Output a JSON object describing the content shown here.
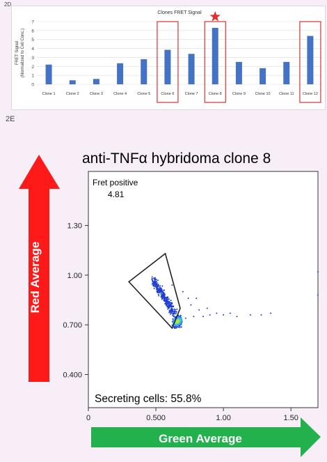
{
  "panels": {
    "top_label": "2D",
    "bottom_label": "2E"
  },
  "chart_data": [
    {
      "type": "bar",
      "title": "Clones FRET Signal",
      "ylabel_line1": "FRET Signal",
      "ylabel_line2": "(Normalized to Cell Conc.)",
      "categories": [
        "Clone 1",
        "Clone 2",
        "Clone 3",
        "Clone 4",
        "Clone 5",
        "Clone 6",
        "Clone 7",
        "Clone 8",
        "Clone 9",
        "Clone 10",
        "Clone 11",
        "Clone 12"
      ],
      "values": [
        2.2,
        0.45,
        0.6,
        2.35,
        2.8,
        3.85,
        3.4,
        6.3,
        2.5,
        1.8,
        2.5,
        5.4
      ],
      "ylim": [
        0,
        7
      ],
      "yticks": [
        "0",
        "1",
        "2",
        "3",
        "4",
        "5",
        "6",
        "7"
      ],
      "highlighted": [
        "Clone 6",
        "Clone 8",
        "Clone 12"
      ],
      "star_on": "Clone 8",
      "grid": "horizontal",
      "bar_color": "#4472c4",
      "highlight_color": "#e03030"
    },
    {
      "type": "scatter",
      "title": "anti-TNFα hybridoma clone 8",
      "gate_name": "Fret positive",
      "gate_value": "4.81",
      "annotation": "Secreting cells: 55.8%",
      "xlabel": "Green Average",
      "ylabel": "Red Average",
      "xlim": [
        0,
        1.7
      ],
      "ylim": [
        0.2,
        1.5
      ],
      "xticks": [
        {
          "value": 0,
          "label": "0"
        },
        {
          "value": 0.5,
          "label": "0.500"
        },
        {
          "value": 1.0,
          "label": "1.00"
        },
        {
          "value": 1.5,
          "label": "1.50"
        }
      ],
      "yticks": [
        {
          "value": 0.4,
          "label": "0.400"
        },
        {
          "value": 0.7,
          "label": "0.700"
        },
        {
          "value": 1.0,
          "label": "1.00"
        },
        {
          "value": 1.3,
          "label": "1.30"
        }
      ],
      "gate_polygon": [
        [
          0.3,
          0.96
        ],
        [
          0.57,
          1.13
        ],
        [
          0.68,
          0.8
        ],
        [
          0.62,
          0.68
        ]
      ],
      "population_main": {
        "center": [
          0.66,
          0.72
        ],
        "spread": [
          0.03,
          0.03
        ]
      },
      "population_gated": {
        "center": [
          0.52,
          0.9
        ],
        "spread": [
          0.05,
          0.07
        ]
      },
      "tail_points": [
        [
          0.72,
          0.74
        ],
        [
          0.78,
          0.75
        ],
        [
          0.85,
          0.75
        ],
        [
          0.9,
          0.76
        ],
        [
          0.95,
          0.77
        ],
        [
          1.0,
          0.76
        ],
        [
          1.05,
          0.77
        ],
        [
          1.1,
          0.75
        ],
        [
          1.2,
          0.76
        ],
        [
          1.28,
          0.76
        ],
        [
          1.35,
          0.77
        ],
        [
          0.88,
          0.8
        ],
        [
          0.82,
          0.79
        ],
        [
          0.76,
          0.82
        ],
        [
          0.74,
          0.86
        ],
        [
          0.8,
          0.86
        ],
        [
          0.7,
          0.9
        ],
        [
          0.62,
          0.94
        ],
        [
          1.7,
          1.02
        ],
        [
          1.7,
          0.88
        ]
      ],
      "point_color": "#1f3fd6",
      "dense_colors": [
        "#2fa8ff",
        "#7fe06a",
        "#d4e030"
      ],
      "arrow_red": "#ff1a1a",
      "arrow_green": "#22b14c"
    }
  ]
}
